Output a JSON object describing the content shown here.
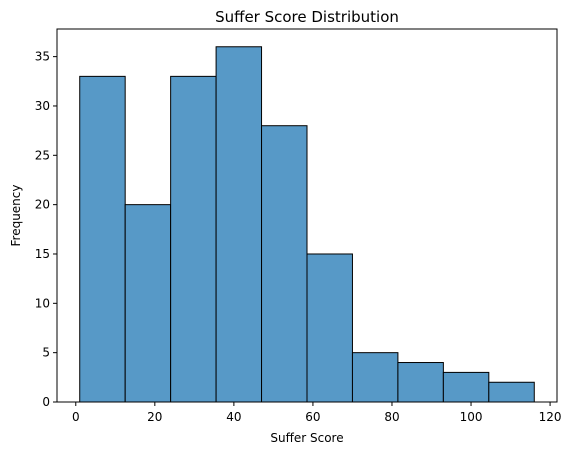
{
  "chart_data": {
    "type": "bar",
    "title": "Suffer Score Distribution",
    "xlabel": "Suffer Score",
    "ylabel": "Frequency",
    "bins": [
      [
        1,
        12.5
      ],
      [
        12.5,
        24
      ],
      [
        24,
        35.5
      ],
      [
        35.5,
        47
      ],
      [
        47,
        58.5
      ],
      [
        58.5,
        70
      ],
      [
        70,
        81.5
      ],
      [
        81.5,
        93
      ],
      [
        93,
        104.5
      ],
      [
        104.5,
        116
      ]
    ],
    "values": [
      33,
      20,
      33,
      36,
      28,
      15,
      5,
      4,
      3,
      2
    ],
    "xlim": [
      -4.75,
      121.75
    ],
    "ylim": [
      0,
      37.8
    ],
    "xticks": [
      0,
      20,
      40,
      60,
      80,
      100,
      120
    ],
    "yticks": [
      0,
      5,
      10,
      15,
      20,
      25,
      30,
      35
    ],
    "bar_color": "#5799c7",
    "edge_color": "#000000",
    "grid": false,
    "legend": "none"
  }
}
